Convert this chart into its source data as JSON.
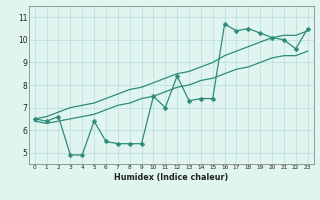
{
  "xlabel": "Humidex (Indice chaleur)",
  "x": [
    0,
    1,
    2,
    3,
    4,
    5,
    6,
    7,
    8,
    9,
    10,
    11,
    12,
    13,
    14,
    15,
    16,
    17,
    18,
    19,
    20,
    21,
    22,
    23
  ],
  "line1": [
    6.5,
    6.4,
    6.6,
    4.9,
    4.9,
    6.4,
    5.5,
    5.4,
    5.4,
    5.4,
    7.5,
    7.0,
    8.4,
    7.3,
    7.4,
    7.4,
    10.7,
    10.4,
    10.5,
    10.3,
    10.1,
    10.0,
    9.6,
    10.5
  ],
  "line2": [
    6.5,
    6.6,
    6.8,
    7.0,
    7.1,
    7.2,
    7.4,
    7.6,
    7.8,
    7.9,
    8.1,
    8.3,
    8.5,
    8.6,
    8.8,
    9.0,
    9.3,
    9.5,
    9.7,
    9.9,
    10.1,
    10.2,
    10.2,
    10.4
  ],
  "line3": [
    6.4,
    6.3,
    6.4,
    6.5,
    6.6,
    6.7,
    6.9,
    7.1,
    7.2,
    7.4,
    7.5,
    7.7,
    7.9,
    8.0,
    8.2,
    8.3,
    8.5,
    8.7,
    8.8,
    9.0,
    9.2,
    9.3,
    9.3,
    9.5
  ],
  "line_color": "#2e8b7a",
  "bg_color": "#e0f5f0",
  "grid_color": "#b8ddd8",
  "ylim": [
    4.5,
    11.5
  ],
  "xlim": [
    -0.5,
    23.5
  ],
  "yticks": [
    5,
    6,
    7,
    8,
    9,
    10,
    11
  ],
  "xticks": [
    0,
    1,
    2,
    3,
    4,
    5,
    6,
    7,
    8,
    9,
    10,
    11,
    12,
    13,
    14,
    15,
    16,
    17,
    18,
    19,
    20,
    21,
    22,
    23
  ],
  "markersize": 2.5,
  "linewidth": 0.9
}
